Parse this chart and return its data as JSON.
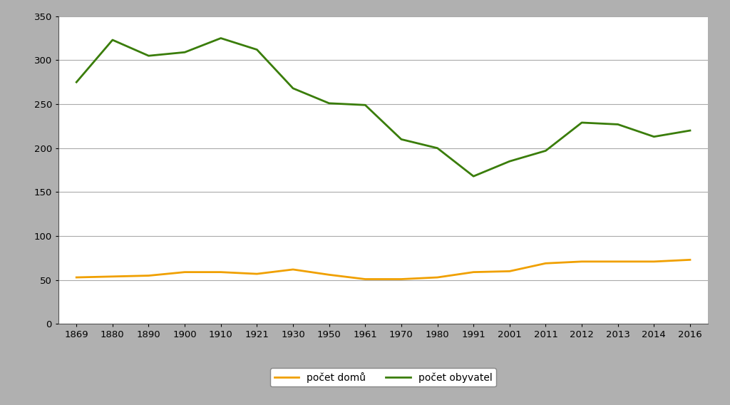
{
  "years": [
    "1869",
    "1880",
    "1890",
    "1900",
    "1910",
    "1921",
    "1930",
    "1950",
    "1961",
    "1970",
    "1980",
    "1991",
    "2001",
    "2011",
    "2012",
    "2013",
    "2014",
    "2016"
  ],
  "pocet_obyvatel": [
    275,
    323,
    305,
    309,
    325,
    312,
    268,
    251,
    249,
    210,
    200,
    168,
    185,
    197,
    229,
    227,
    213,
    220
  ],
  "pocet_domu": [
    53,
    54,
    55,
    59,
    59,
    57,
    62,
    56,
    51,
    51,
    53,
    59,
    60,
    69,
    71,
    71,
    71,
    73
  ],
  "obyvatel_color": "#3a7d0a",
  "domu_color": "#f0a000",
  "background_outer": "#b0b0b0",
  "background_inner": "#ffffff",
  "ylim": [
    0,
    350
  ],
  "yticks": [
    0,
    50,
    100,
    150,
    200,
    250,
    300,
    350
  ],
  "legend_label_domu": "počet domů",
  "legend_label_obyvatel": "počet obyvatel",
  "grid_color": "#aaaaaa",
  "axis_color": "#555555",
  "tick_fontsize": 9.5,
  "legend_fontsize": 10,
  "line_width": 2.0
}
